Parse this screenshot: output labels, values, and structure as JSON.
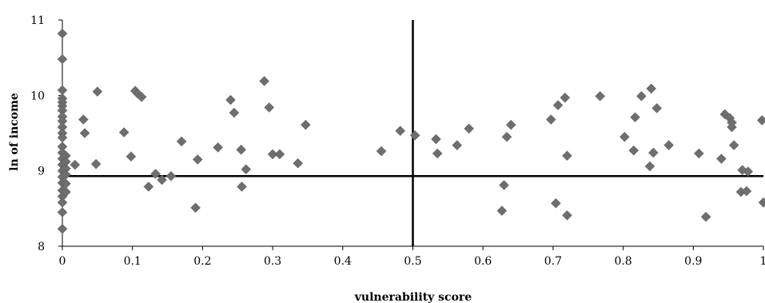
{
  "chart_data": {
    "type": "scatter",
    "title": "",
    "xlabel": "vulnerability score",
    "ylabel": "ln of income",
    "xlim": [
      0,
      1
    ],
    "ylim": [
      8,
      11
    ],
    "x_ticks": [
      "0",
      "0.1",
      "0.2",
      "0.3",
      "0.4",
      "0.5",
      "0.6",
      "0.7",
      "0.8",
      "0.9",
      "1"
    ],
    "y_ticks": [
      "8",
      "9",
      "10",
      "11"
    ],
    "reference_lines": {
      "vertical_x": 0.5,
      "horizontal_y": 8.93
    },
    "grid": false,
    "legend": "none",
    "marker": "diamond",
    "marker_color": "#6e6e6e",
    "series": [
      {
        "points": [
          [
            0,
            10.82
          ],
          [
            0,
            10.48
          ],
          [
            0,
            10.07
          ],
          [
            0,
            9.96
          ],
          [
            0,
            9.91
          ],
          [
            0,
            9.86
          ],
          [
            0,
            9.8
          ],
          [
            0,
            9.72
          ],
          [
            0,
            9.66
          ],
          [
            0,
            9.58
          ],
          [
            0,
            9.5
          ],
          [
            0,
            9.44
          ],
          [
            0,
            9.32
          ],
          [
            0,
            9.24
          ],
          [
            0,
            9.16
          ],
          [
            0,
            9.08
          ],
          [
            0,
            9.0
          ],
          [
            0,
            8.92
          ],
          [
            0,
            8.84
          ],
          [
            0,
            8.74
          ],
          [
            0,
            8.66
          ],
          [
            0,
            8.58
          ],
          [
            0,
            8.45
          ],
          [
            0,
            8.23
          ],
          [
            0.005,
            9.2
          ],
          [
            0.005,
            9.03
          ],
          [
            0.005,
            8.95
          ],
          [
            0.005,
            8.83
          ],
          [
            0.005,
            8.72
          ],
          [
            0.005,
            9.12
          ],
          [
            0.018,
            9.08
          ],
          [
            0.03,
            9.68
          ],
          [
            0.032,
            9.5
          ],
          [
            0.048,
            9.09
          ],
          [
            0.05,
            10.05
          ],
          [
            0.088,
            9.51
          ],
          [
            0.098,
            9.19
          ],
          [
            0.104,
            10.06
          ],
          [
            0.108,
            10.02
          ],
          [
            0.113,
            9.98
          ],
          [
            0.123,
            8.79
          ],
          [
            0.133,
            8.96
          ],
          [
            0.142,
            8.88
          ],
          [
            0.155,
            8.93
          ],
          [
            0.17,
            9.39
          ],
          [
            0.19,
            8.51
          ],
          [
            0.193,
            9.15
          ],
          [
            0.222,
            9.31
          ],
          [
            0.24,
            9.94
          ],
          [
            0.245,
            9.77
          ],
          [
            0.255,
            9.28
          ],
          [
            0.256,
            8.79
          ],
          [
            0.262,
            9.02
          ],
          [
            0.288,
            10.19
          ],
          [
            0.295,
            9.84
          ],
          [
            0.3,
            9.22
          ],
          [
            0.31,
            9.22
          ],
          [
            0.336,
            9.1
          ],
          [
            0.347,
            9.61
          ],
          [
            0.455,
            9.26
          ],
          [
            0.482,
            9.53
          ],
          [
            0.503,
            9.47
          ],
          [
            0.533,
            9.42
          ],
          [
            0.535,
            9.23
          ],
          [
            0.563,
            9.34
          ],
          [
            0.58,
            9.56
          ],
          [
            0.627,
            8.47
          ],
          [
            0.63,
            8.81
          ],
          [
            0.634,
            9.45
          ],
          [
            0.64,
            9.61
          ],
          [
            0.697,
            9.68
          ],
          [
            0.704,
            8.57
          ],
          [
            0.707,
            9.87
          ],
          [
            0.717,
            9.97
          ],
          [
            0.72,
            9.2
          ],
          [
            0.72,
            8.41
          ],
          [
            0.767,
            9.99
          ],
          [
            0.802,
            9.45
          ],
          [
            0.815,
            9.27
          ],
          [
            0.817,
            9.71
          ],
          [
            0.826,
            9.99
          ],
          [
            0.838,
            9.06
          ],
          [
            0.84,
            10.09
          ],
          [
            0.843,
            9.24
          ],
          [
            0.848,
            9.83
          ],
          [
            0.865,
            9.34
          ],
          [
            0.908,
            9.23
          ],
          [
            0.918,
            8.39
          ],
          [
            0.94,
            9.16
          ],
          [
            0.945,
            9.75
          ],
          [
            0.952,
            9.7
          ],
          [
            0.955,
            9.58
          ],
          [
            0.955,
            9.64
          ],
          [
            0.958,
            9.34
          ],
          [
            0.968,
            8.72
          ],
          [
            0.97,
            9.01
          ],
          [
            0.976,
            8.73
          ],
          [
            0.978,
            8.99
          ],
          [
            0.998,
            9.67
          ],
          [
            1.0,
            8.58
          ]
        ]
      }
    ]
  }
}
